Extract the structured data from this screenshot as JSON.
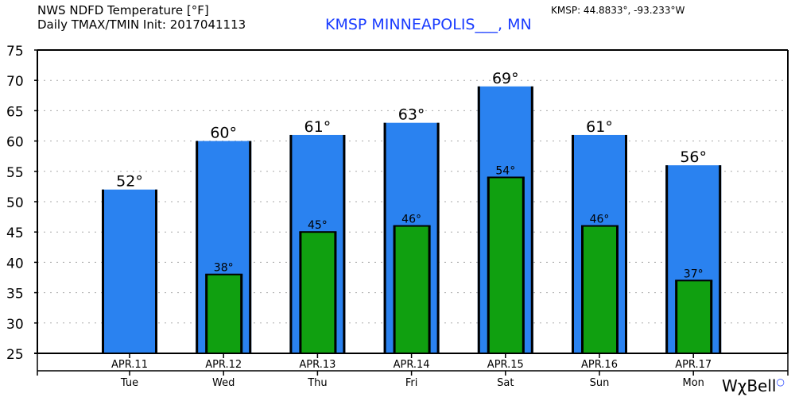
{
  "header": {
    "title_line1": "NWS NDFD Temperature [°F]",
    "title_line2": "Daily TMAX/TMIN Init: 2017041113",
    "station": "KMSP MINNEAPOLIS___, MN",
    "coords": "KMSP: 44.8833°, -93.233°W",
    "station_color": "#1a3cff"
  },
  "branding": {
    "logo": "WχBell"
  },
  "chart_data": {
    "type": "bar",
    "ylim": [
      25,
      75
    ],
    "yticks": [
      25,
      30,
      35,
      40,
      45,
      50,
      55,
      60,
      65,
      70,
      75
    ],
    "grid": true,
    "categories": [
      "APR.11",
      "APR.12",
      "APR.13",
      "APR.14",
      "APR.15",
      "APR.16",
      "APR.17"
    ],
    "days": [
      "Tue",
      "Wed",
      "Thu",
      "Fri",
      "Sat",
      "Sun",
      "Mon"
    ],
    "series": [
      {
        "name": "TMAX",
        "color": "#2a82f0",
        "values": [
          52,
          60,
          61,
          63,
          69,
          61,
          56
        ],
        "labels": [
          "52°",
          "60°",
          "61°",
          "63°",
          "69°",
          "61°",
          "56°"
        ]
      },
      {
        "name": "TMIN",
        "color": "#10a010",
        "values": [
          null,
          38,
          45,
          46,
          54,
          46,
          37
        ],
        "labels": [
          "",
          "38°",
          "45°",
          "46°",
          "54°",
          "46°",
          "37°"
        ]
      }
    ]
  }
}
